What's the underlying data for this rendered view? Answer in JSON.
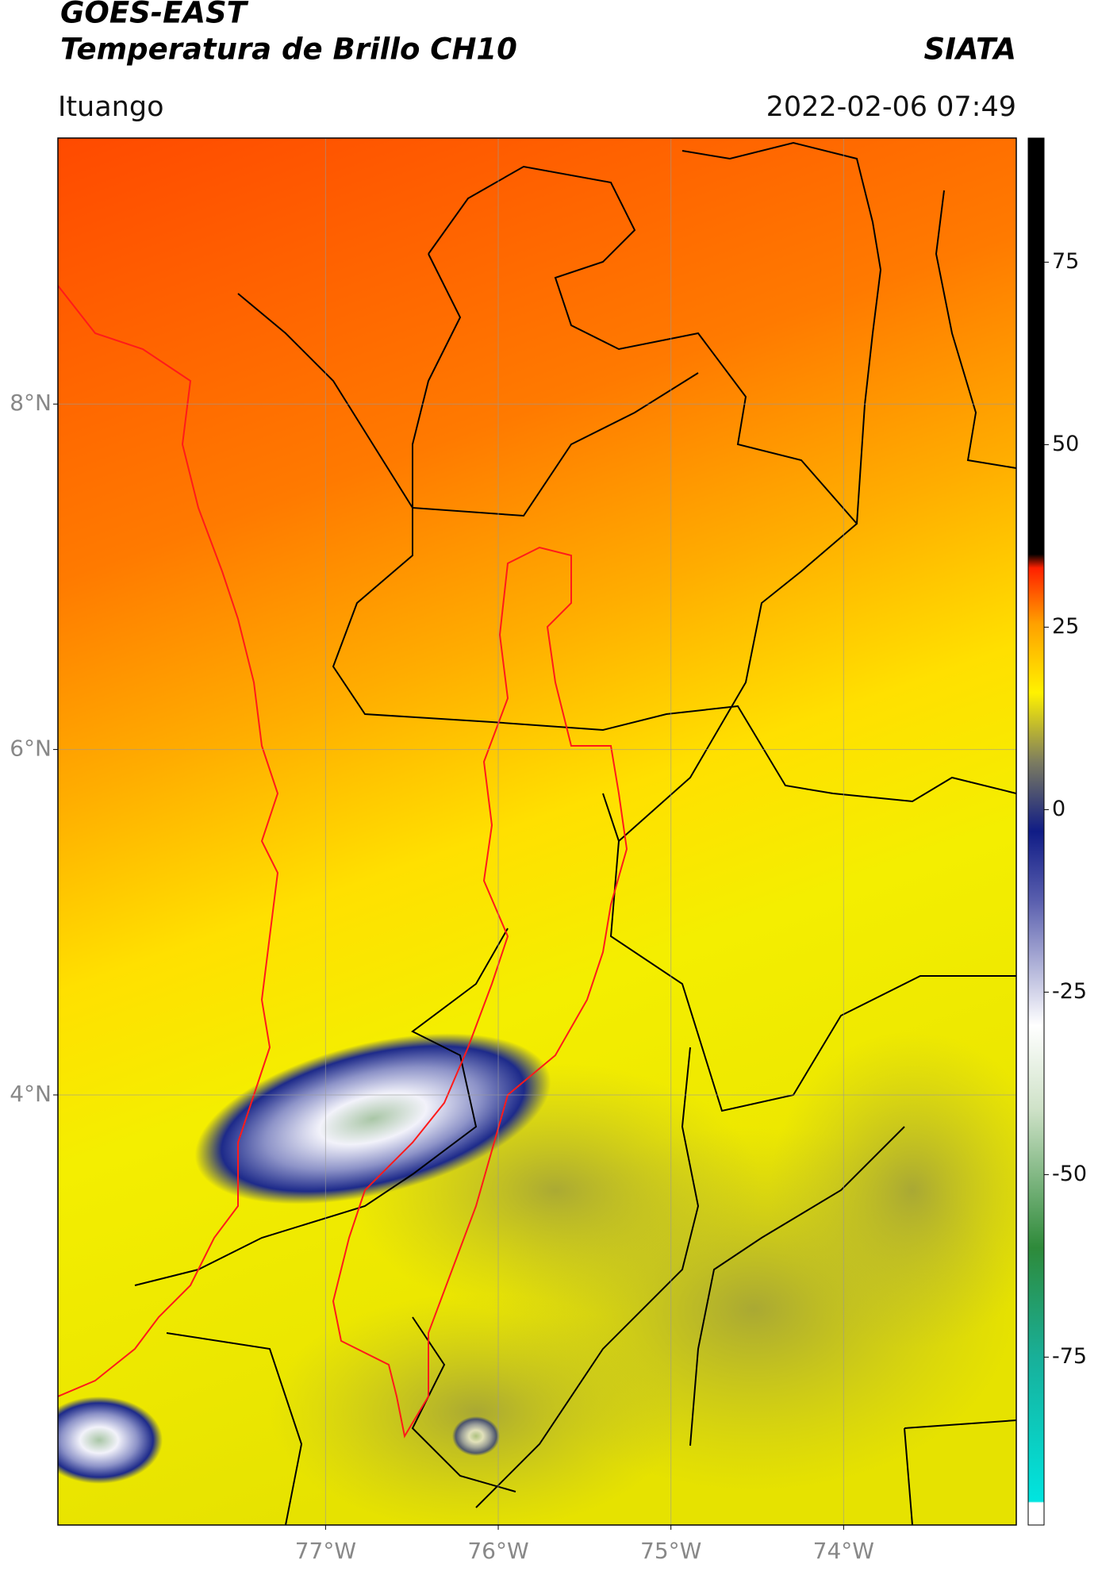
{
  "header": {
    "title_line1": "GOES-EAST",
    "title_line2": "Temperatura de Brillo CH10",
    "agency": "SIATA",
    "region": "Ituango",
    "datetime": "2022-02-06 07:49"
  },
  "chart_data": {
    "type": "map",
    "xlim": [
      -78.55,
      -73.0
    ],
    "ylim": [
      1.51,
      9.54
    ],
    "xticks": [
      {
        "value": -77,
        "label": "77°W"
      },
      {
        "value": -76,
        "label": "76°W"
      },
      {
        "value": -75,
        "label": "75°W"
      },
      {
        "value": -74,
        "label": "74°W"
      }
    ],
    "yticks": [
      {
        "value": 8,
        "label": "8°N"
      },
      {
        "value": 6,
        "label": "6°N"
      },
      {
        "value": 4,
        "label": "4°N"
      }
    ],
    "grid": true,
    "colorbar": {
      "lim": [
        -98,
        92
      ],
      "ticks": [
        75,
        50,
        25,
        0,
        -25,
        -50,
        -75
      ]
    }
  }
}
